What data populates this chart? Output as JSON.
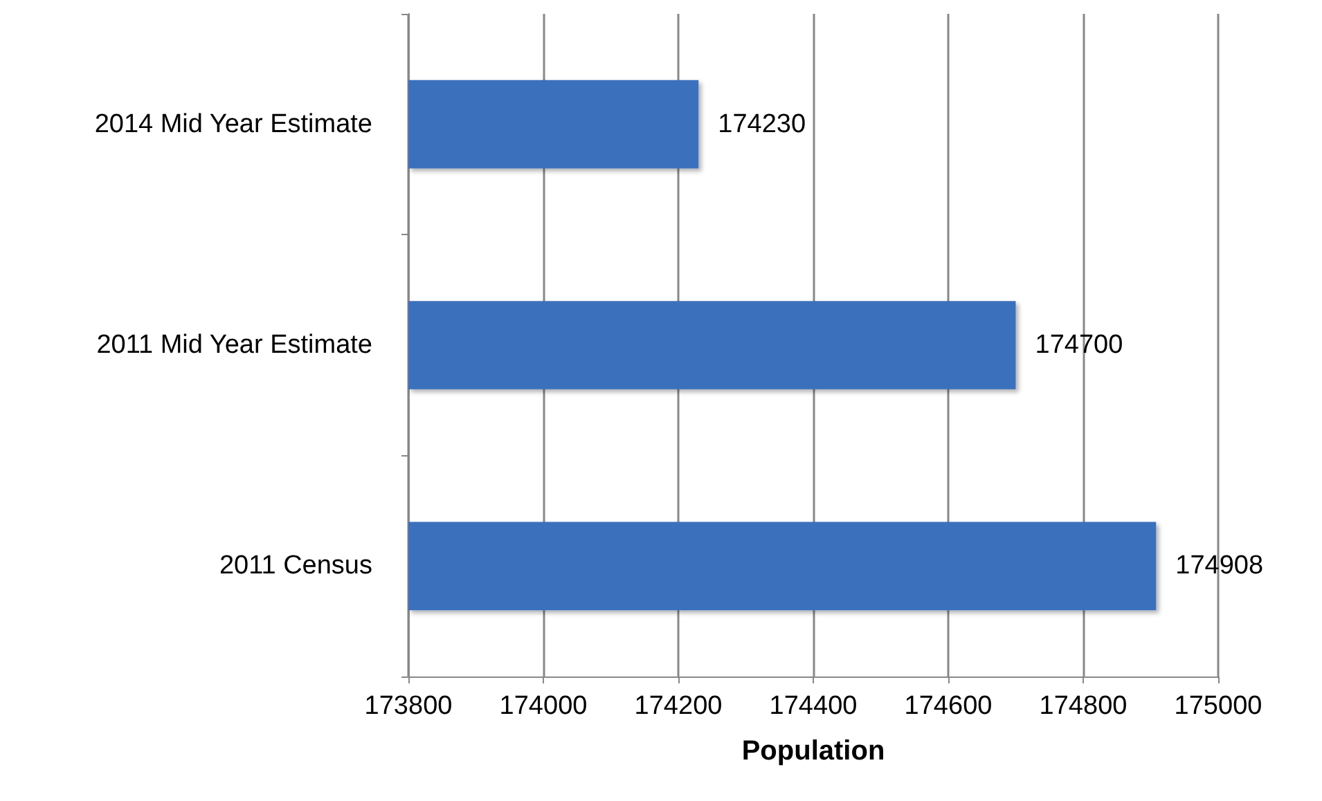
{
  "chart_data": {
    "type": "bar",
    "orientation": "horizontal",
    "categories": [
      "2014 Mid Year Estimate",
      "2011 Mid Year Estimate",
      "2011 Census"
    ],
    "values": [
      174230,
      174700,
      174908
    ],
    "color": "#3a70bd",
    "xlim": [
      173800,
      175000
    ],
    "xticks": [
      173800,
      174000,
      174200,
      174400,
      174600,
      174800,
      175000
    ],
    "xlabel": "Population",
    "grid": "x",
    "data_labels": true
  }
}
